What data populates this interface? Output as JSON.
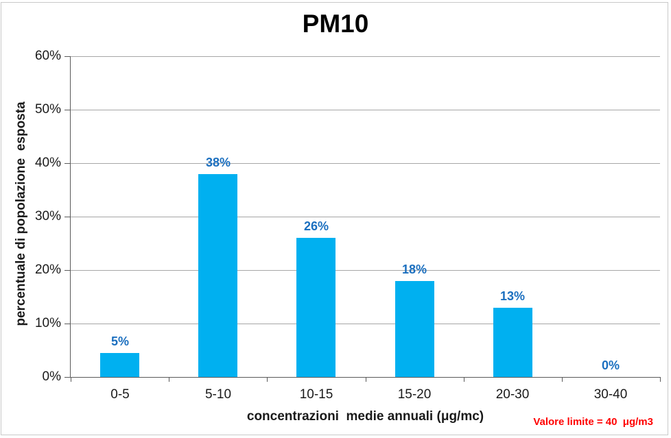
{
  "chart_data": {
    "type": "bar",
    "title": "PM10",
    "categories": [
      "0-5",
      "5-10",
      "10-15",
      "15-20",
      "20-30",
      "30-40"
    ],
    "values": [
      4.5,
      38,
      26,
      18,
      13,
      0
    ],
    "data_labels": [
      "5%",
      "38%",
      "26%",
      "18%",
      "13%",
      "0%"
    ],
    "xlabel": "concentrazioni  medie annuali (μg/mc)",
    "ylabel": "percentuale di popolazione  esposta",
    "ylim": [
      0,
      60
    ],
    "ytick_step": 10,
    "ytick_labels": [
      "0%",
      "10%",
      "20%",
      "30%",
      "40%",
      "50%",
      "60%"
    ],
    "grid": true,
    "legend": false,
    "bar_color": "#00B0F0",
    "label_color": "#1B6FBF",
    "gridline_color": "#A6A6A6",
    "axis_color": "#595959",
    "annotation": {
      "text": "Valore limite = 40  μg/m3",
      "color": "#FF0000"
    }
  }
}
